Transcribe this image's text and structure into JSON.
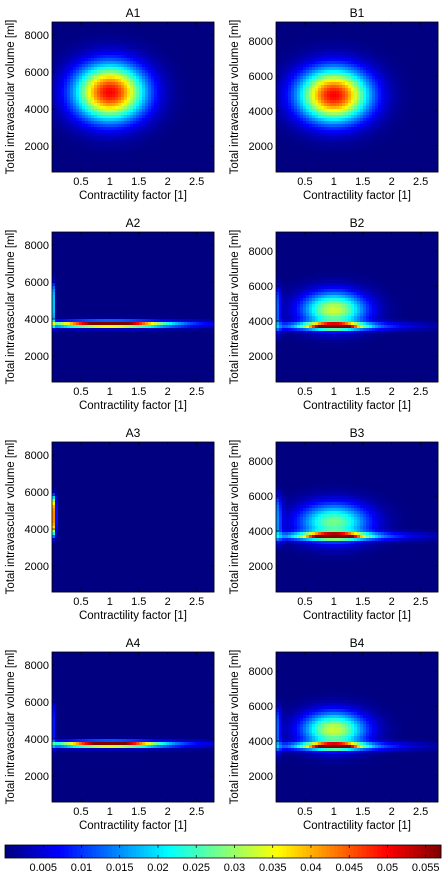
{
  "chart_data": {
    "type": "heatmap",
    "xlabel": "Contractility factor [1]",
    "ylabel": "Total intravascular volume [ml]",
    "colormap": "jet",
    "colorbar": {
      "ticks": [
        0.005,
        0.01,
        0.015,
        0.02,
        0.025,
        0.03,
        0.035,
        0.04,
        0.045,
        0.05,
        0.055
      ],
      "labels": [
        "0.005",
        "0.01",
        "0.015",
        "0.02",
        "0.025",
        "0.03",
        "0.035",
        "0.04",
        "0.045",
        "0.05",
        "0.055"
      ],
      "range": [
        0,
        0.057
      ]
    },
    "panels": [
      {
        "title": "A1",
        "xlim": [
          0,
          2.8
        ],
        "ylim": [
          600,
          8700
        ],
        "xticks": [
          0.5,
          1,
          1.5,
          2,
          2.5
        ],
        "xticklabels": [
          "0.5",
          "1",
          "1.5",
          "2",
          "2.5"
        ],
        "yticks": [
          2000,
          4000,
          6000,
          8000
        ],
        "yticklabels": [
          "2000",
          "4000",
          "6000",
          "8000"
        ],
        "components": [
          {
            "kind": "blob",
            "x": 1.0,
            "y": 4900,
            "sx": 0.42,
            "sy": 1050,
            "amp": 0.05
          }
        ]
      },
      {
        "title": "B1",
        "xlim": [
          0,
          2.8
        ],
        "ylim": [
          500,
          9100
        ],
        "xticks": [
          0.5,
          1,
          1.5,
          2,
          2.5
        ],
        "xticklabels": [
          "0.5",
          "1",
          "1.5",
          "2",
          "2.5"
        ],
        "yticks": [
          2000,
          4000,
          6000,
          8000
        ],
        "yticklabels": [
          "2000",
          "4000",
          "6000",
          "8000"
        ],
        "components": [
          {
            "kind": "blob",
            "x": 1.0,
            "y": 4900,
            "sx": 0.42,
            "sy": 1050,
            "amp": 0.05
          }
        ]
      },
      {
        "title": "A2",
        "xlim": [
          0,
          2.8
        ],
        "ylim": [
          600,
          8700
        ],
        "xticks": [
          0.5,
          1,
          1.5,
          2,
          2.5
        ],
        "xticklabels": [
          "0.5",
          "1",
          "1.5",
          "2",
          "2.5"
        ],
        "yticks": [
          2000,
          4000,
          6000,
          8000
        ],
        "yticklabels": [
          "2000",
          "4000",
          "6000",
          "8000"
        ],
        "components": [
          {
            "kind": "band",
            "x": 1.0,
            "y": 3720,
            "sx": 0.55,
            "sy": 90,
            "amp": 0.047
          },
          {
            "kind": "band",
            "x": 1.0,
            "y": 3720,
            "sx": 1.05,
            "sy": 140,
            "amp": 0.024
          },
          {
            "kind": "vstrip",
            "y": 4800,
            "sy": 1000,
            "sx": 0.03,
            "amp": 0.026
          }
        ]
      },
      {
        "title": "B2",
        "xlim": [
          0,
          2.8
        ],
        "ylim": [
          500,
          9100
        ],
        "xticks": [
          0.5,
          1,
          1.5,
          2,
          2.5
        ],
        "xticklabels": [
          "0.5",
          "1",
          "1.5",
          "2",
          "2.5"
        ],
        "yticks": [
          2000,
          4000,
          6000,
          8000
        ],
        "yticklabels": [
          "2000",
          "4000",
          "6000",
          "8000"
        ],
        "components": [
          {
            "kind": "blob",
            "x": 1.0,
            "y": 4650,
            "sx": 0.38,
            "sy": 700,
            "amp": 0.033
          },
          {
            "kind": "band",
            "x": 1.0,
            "y": 3720,
            "sx": 0.3,
            "sy": 110,
            "amp": 0.05
          },
          {
            "kind": "band",
            "x": 1.0,
            "y": 3700,
            "sx": 0.9,
            "sy": 170,
            "amp": 0.016
          },
          {
            "kind": "vstrip",
            "y": 4600,
            "sy": 1200,
            "sx": 0.06,
            "amp": 0.012
          }
        ]
      },
      {
        "title": "A3",
        "xlim": [
          0,
          2.8
        ],
        "ylim": [
          600,
          8700
        ],
        "xticks": [
          0.5,
          1,
          1.5,
          2,
          2.5
        ],
        "xticklabels": [
          "0.5",
          "1",
          "1.5",
          "2",
          "2.5"
        ],
        "yticks": [
          2000,
          4000,
          6000,
          8000
        ],
        "yticklabels": [
          "2000",
          "4000",
          "6000",
          "8000"
        ],
        "components": [
          {
            "kind": "vstrip",
            "y": 4700,
            "sy": 900,
            "sx": 0.04,
            "amp": 0.052
          }
        ]
      },
      {
        "title": "B3",
        "xlim": [
          0,
          2.8
        ],
        "ylim": [
          500,
          9100
        ],
        "xticks": [
          0.5,
          1,
          1.5,
          2,
          2.5
        ],
        "xticklabels": [
          "0.5",
          "1",
          "1.5",
          "2",
          "2.5"
        ],
        "yticks": [
          2000,
          4000,
          6000,
          8000
        ],
        "yticklabels": [
          "2000",
          "4000",
          "6000",
          "8000"
        ],
        "components": [
          {
            "kind": "blob",
            "x": 1.0,
            "y": 4500,
            "sx": 0.42,
            "sy": 750,
            "amp": 0.028
          },
          {
            "kind": "band",
            "x": 1.0,
            "y": 3720,
            "sx": 0.32,
            "sy": 110,
            "amp": 0.05
          },
          {
            "kind": "band",
            "x": 1.0,
            "y": 3700,
            "sx": 0.95,
            "sy": 170,
            "amp": 0.017
          },
          {
            "kind": "vstrip",
            "y": 4700,
            "sy": 1200,
            "sx": 0.07,
            "amp": 0.014
          }
        ]
      },
      {
        "title": "A4",
        "xlim": [
          0,
          2.8
        ],
        "ylim": [
          600,
          8700
        ],
        "xticks": [
          0.5,
          1,
          1.5,
          2,
          2.5
        ],
        "xticklabels": [
          "0.5",
          "1",
          "1.5",
          "2",
          "2.5"
        ],
        "yticks": [
          2000,
          4000,
          6000,
          8000
        ],
        "yticklabels": [
          "2000",
          "4000",
          "6000",
          "8000"
        ],
        "components": [
          {
            "kind": "band",
            "x": 1.0,
            "y": 3720,
            "sx": 0.5,
            "sy": 90,
            "amp": 0.047
          },
          {
            "kind": "band",
            "x": 1.0,
            "y": 3720,
            "sx": 1.0,
            "sy": 140,
            "amp": 0.022
          },
          {
            "kind": "vstrip",
            "y": 4700,
            "sy": 1100,
            "sx": 0.04,
            "amp": 0.01
          }
        ]
      },
      {
        "title": "B4",
        "xlim": [
          0,
          2.8
        ],
        "ylim": [
          500,
          9100
        ],
        "xticks": [
          0.5,
          1,
          1.5,
          2,
          2.5
        ],
        "xticklabels": [
          "0.5",
          "1",
          "1.5",
          "2",
          "2.5"
        ],
        "yticks": [
          2000,
          4000,
          6000,
          8000
        ],
        "yticklabels": [
          "2000",
          "4000",
          "6000",
          "8000"
        ],
        "components": [
          {
            "kind": "blob",
            "x": 1.0,
            "y": 4650,
            "sx": 0.38,
            "sy": 700,
            "amp": 0.033
          },
          {
            "kind": "band",
            "x": 1.0,
            "y": 3720,
            "sx": 0.3,
            "sy": 110,
            "amp": 0.05
          },
          {
            "kind": "band",
            "x": 1.0,
            "y": 3700,
            "sx": 0.9,
            "sy": 170,
            "amp": 0.016
          },
          {
            "kind": "vstrip",
            "y": 4600,
            "sy": 1200,
            "sx": 0.06,
            "amp": 0.012
          }
        ]
      }
    ]
  }
}
